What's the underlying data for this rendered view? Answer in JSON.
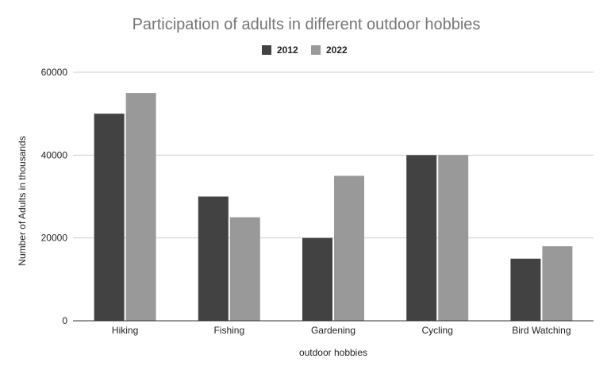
{
  "chart_data": {
    "type": "bar",
    "title": "Participation of adults in different outdoor hobbies",
    "xlabel": "outdoor hobbies",
    "ylabel": "Number of Adults in thousands",
    "categories": [
      "Hiking",
      "Fishing",
      "Gardening",
      "Cycling",
      "Bird Watching"
    ],
    "series": [
      {
        "name": "2012",
        "values": [
          50000,
          30000,
          20000,
          40000,
          15000
        ],
        "color": "#424242"
      },
      {
        "name": "2022",
        "values": [
          55000,
          25000,
          35000,
          40000,
          18000
        ],
        "color": "#999999"
      }
    ],
    "ylim": [
      0,
      60000
    ],
    "yticks": [
      "0",
      "20000",
      "40000",
      "60000"
    ],
    "grid": true,
    "legend": "top-center"
  }
}
